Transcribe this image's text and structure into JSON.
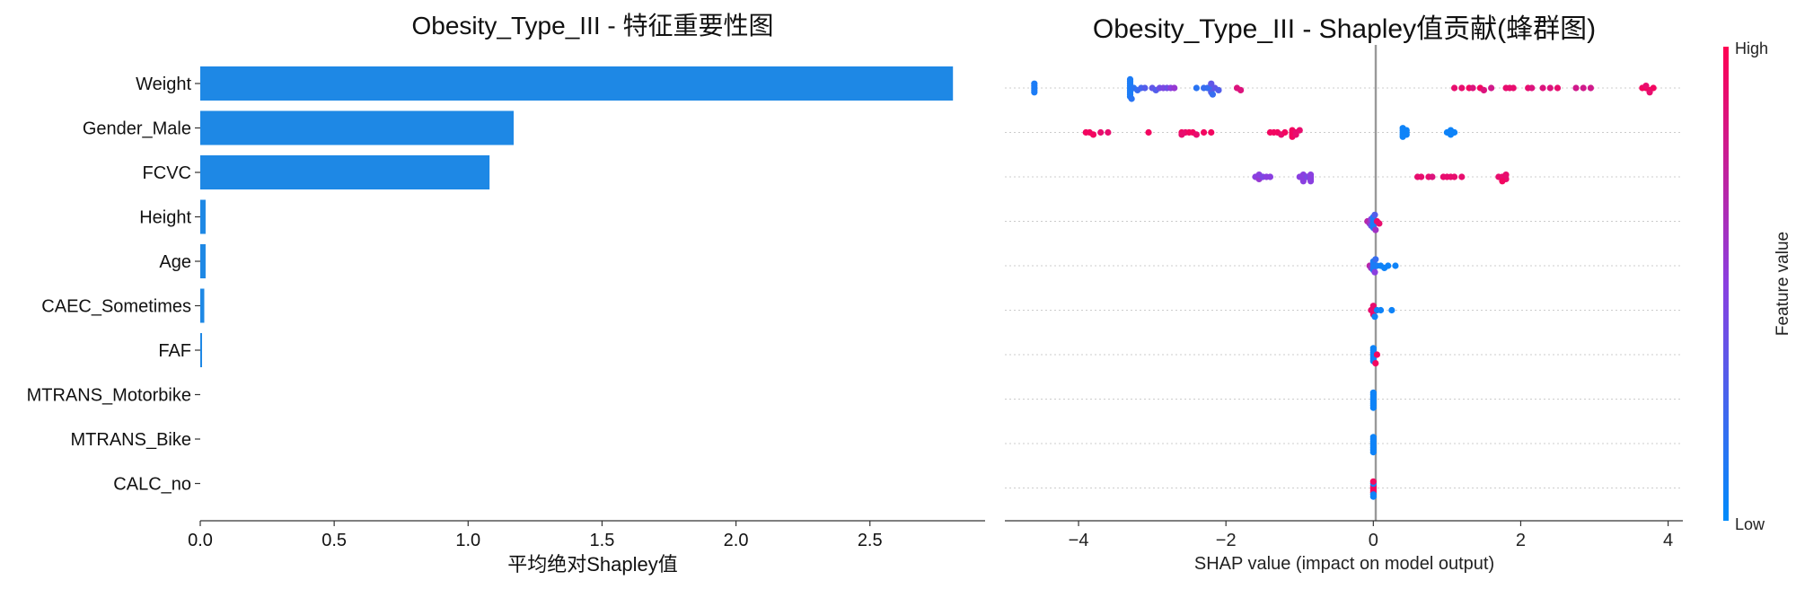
{
  "chart_data": [
    {
      "type": "bar",
      "orientation": "horizontal",
      "title": "Obesity_Type_III - 特征重要性图",
      "xlabel": "平均绝对Shapley值",
      "ylabel": "",
      "xlim": [
        0,
        2.93
      ],
      "xticks": [
        0.0,
        0.5,
        1.0,
        1.5,
        2.0,
        2.5
      ],
      "xtick_labels": [
        "0.0",
        "0.5",
        "1.0",
        "1.5",
        "2.0",
        "2.5"
      ],
      "categories": [
        "Weight",
        "Gender_Male",
        "FCVC",
        "Height",
        "Age",
        "CAEC_Sometimes",
        "FAF",
        "MTRANS_Motorbike",
        "MTRANS_Bike",
        "CALC_no"
      ],
      "values": [
        2.81,
        1.17,
        1.08,
        0.02,
        0.02,
        0.015,
        0.005,
        0.0,
        0.0,
        0.0
      ],
      "color": "#1e88e5"
    },
    {
      "type": "scatter",
      "subtype": "beeswarm",
      "title": "Obesity_Type_III - Shapley值贡献(蜂群图)",
      "xlabel": "SHAP value (impact on model output)",
      "xlim": [
        -5.0,
        4.2
      ],
      "xticks": [
        -4,
        -2,
        0,
        2,
        4
      ],
      "xtick_labels": [
        "−4",
        "−2",
        "0",
        "2",
        "4"
      ],
      "features": [
        "Weight",
        "Gender_Male",
        "FCVC",
        "Height",
        "Age",
        "CAEC_Sometimes",
        "FAF",
        "MTRANS_Motorbike",
        "MTRANS_Bike",
        "CALC_no"
      ],
      "colorbar": {
        "label": "Feature value",
        "high_label": "High",
        "low_label": "Low",
        "low_color": "#008bfb",
        "high_color": "#ff0052"
      },
      "points": [
        [
          [
            -4.6,
            0.1
          ],
          [
            -4.6,
            0.1
          ],
          [
            -4.6,
            0.1
          ],
          [
            -4.6,
            0.1
          ],
          [
            -4.6,
            0.1
          ],
          [
            -3.3,
            0.1
          ],
          [
            -3.3,
            0.1
          ],
          [
            -3.3,
            0.1
          ],
          [
            -3.3,
            0.1
          ],
          [
            -3.3,
            0.1
          ],
          [
            -3.3,
            0.1
          ],
          [
            -3.3,
            0.1
          ],
          [
            -3.3,
            0.1
          ],
          [
            -3.3,
            0.1
          ],
          [
            -3.28,
            0.15
          ],
          [
            -3.25,
            0.15
          ],
          [
            -3.2,
            0.2
          ],
          [
            -3.15,
            0.25
          ],
          [
            -3.1,
            0.3
          ],
          [
            -3.0,
            0.35
          ],
          [
            -2.95,
            0.3
          ],
          [
            -2.9,
            0.4
          ],
          [
            -2.85,
            0.45
          ],
          [
            -2.8,
            0.4
          ],
          [
            -2.75,
            0.5
          ],
          [
            -2.7,
            0.55
          ],
          [
            -2.4,
            0.15
          ],
          [
            -2.3,
            0.2
          ],
          [
            -2.25,
            0.2
          ],
          [
            -2.2,
            0.25
          ],
          [
            -2.2,
            0.15
          ],
          [
            -2.2,
            0.2
          ],
          [
            -2.2,
            0.3
          ],
          [
            -2.2,
            0.35
          ],
          [
            -2.18,
            0.2
          ],
          [
            -2.15,
            0.35
          ],
          [
            -2.1,
            0.3
          ],
          [
            -1.85,
            0.85
          ],
          [
            -1.8,
            0.85
          ],
          [
            1.1,
            0.9
          ],
          [
            1.2,
            0.9
          ],
          [
            1.3,
            0.95
          ],
          [
            1.35,
            0.85
          ],
          [
            1.45,
            0.95
          ],
          [
            1.5,
            0.85
          ],
          [
            1.6,
            0.8
          ],
          [
            1.8,
            0.9
          ],
          [
            1.85,
            0.9
          ],
          [
            1.9,
            0.9
          ],
          [
            2.1,
            0.9
          ],
          [
            2.15,
            0.85
          ],
          [
            2.3,
            0.85
          ],
          [
            2.4,
            0.85
          ],
          [
            2.5,
            0.9
          ],
          [
            2.75,
            0.8
          ],
          [
            2.85,
            0.8
          ],
          [
            2.95,
            0.8
          ],
          [
            3.65,
            0.95
          ],
          [
            3.7,
            0.95
          ],
          [
            3.75,
            0.95
          ],
          [
            3.8,
            0.95
          ],
          [
            3.7,
            0.9
          ],
          [
            3.75,
            0.9
          ]
        ],
        [
          [
            -3.9,
            0.95
          ],
          [
            -3.85,
            0.95
          ],
          [
            -3.8,
            0.95
          ],
          [
            -3.7,
            0.9
          ],
          [
            -3.6,
            0.9
          ],
          [
            -3.05,
            0.95
          ],
          [
            -2.6,
            0.95
          ],
          [
            -2.55,
            0.9
          ],
          [
            -2.5,
            0.95
          ],
          [
            -2.45,
            0.95
          ],
          [
            -2.6,
            0.9
          ],
          [
            -2.4,
            0.9
          ],
          [
            -2.3,
            0.95
          ],
          [
            -2.2,
            0.95
          ],
          [
            -1.4,
            0.95
          ],
          [
            -1.35,
            0.95
          ],
          [
            -1.3,
            0.95
          ],
          [
            -1.25,
            0.9
          ],
          [
            -1.2,
            0.95
          ],
          [
            -1.1,
            0.95
          ],
          [
            -1.1,
            0.95
          ],
          [
            -1.1,
            0.95
          ],
          [
            -1.1,
            0.95
          ],
          [
            -1.05,
            0.9
          ],
          [
            -1.05,
            0.9
          ],
          [
            -1.0,
            0.9
          ],
          [
            0.4,
            0.05
          ],
          [
            0.4,
            0.05
          ],
          [
            0.4,
            0.05
          ],
          [
            0.4,
            0.05
          ],
          [
            0.4,
            0.05
          ],
          [
            0.45,
            0.05
          ],
          [
            0.45,
            0.05
          ],
          [
            0.45,
            0.05
          ],
          [
            1.0,
            0.05
          ],
          [
            1.05,
            0.05
          ],
          [
            1.05,
            0.05
          ],
          [
            1.1,
            0.05
          ],
          [
            1.05,
            0.05
          ]
        ],
        [
          [
            -1.6,
            0.5
          ],
          [
            -1.55,
            0.55
          ],
          [
            -1.55,
            0.5
          ],
          [
            -1.5,
            0.45
          ],
          [
            -1.45,
            0.5
          ],
          [
            -1.4,
            0.5
          ],
          [
            -1.0,
            0.5
          ],
          [
            -0.95,
            0.5
          ],
          [
            -0.95,
            0.5
          ],
          [
            -0.95,
            0.5
          ],
          [
            -0.95,
            0.5
          ],
          [
            -0.9,
            0.45
          ],
          [
            -0.85,
            0.5
          ],
          [
            -0.85,
            0.5
          ],
          [
            -0.85,
            0.5
          ],
          [
            -0.85,
            0.5
          ],
          [
            0.6,
            0.9
          ],
          [
            0.65,
            0.9
          ],
          [
            0.75,
            0.9
          ],
          [
            0.8,
            0.85
          ],
          [
            0.95,
            0.9
          ],
          [
            1.0,
            0.9
          ],
          [
            1.05,
            0.9
          ],
          [
            1.1,
            0.9
          ],
          [
            1.2,
            0.9
          ],
          [
            1.7,
            0.9
          ],
          [
            1.75,
            0.9
          ],
          [
            1.8,
            0.9
          ],
          [
            1.8,
            0.9
          ],
          [
            1.75,
            0.95
          ]
        ],
        [
          [
            -0.08,
            0.7
          ],
          [
            -0.05,
            0.6
          ],
          [
            -0.03,
            0.5
          ],
          [
            -0.03,
            0.4
          ],
          [
            0.0,
            0.2
          ],
          [
            0.0,
            0.1
          ],
          [
            0.0,
            0.1
          ],
          [
            0.0,
            0.1
          ],
          [
            0.0,
            0.1
          ],
          [
            0.0,
            0.1
          ],
          [
            0.02,
            0.3
          ],
          [
            0.03,
            0.6
          ],
          [
            0.05,
            0.9
          ],
          [
            0.08,
            0.9
          ]
        ],
        [
          [
            -0.05,
            0.7
          ],
          [
            -0.03,
            0.6
          ],
          [
            0.0,
            0.2
          ],
          [
            0.0,
            0.1
          ],
          [
            0.0,
            0.1
          ],
          [
            0.0,
            0.1
          ],
          [
            0.0,
            0.1
          ],
          [
            0.02,
            0.5
          ],
          [
            0.03,
            0.2
          ],
          [
            0.05,
            0.1
          ],
          [
            0.1,
            0.05
          ],
          [
            0.15,
            0.05
          ],
          [
            0.2,
            0.05
          ],
          [
            0.3,
            0.05
          ]
        ],
        [
          [
            -0.03,
            0.9
          ],
          [
            -0.02,
            0.9
          ],
          [
            0.0,
            0.9
          ],
          [
            0.0,
            0.9
          ],
          [
            0.0,
            0.9
          ],
          [
            0.0,
            0.9
          ],
          [
            0.02,
            0.05
          ],
          [
            0.05,
            0.05
          ],
          [
            0.1,
            0.05
          ],
          [
            0.25,
            0.05
          ]
        ],
        [
          [
            0.0,
            0.05
          ],
          [
            0.0,
            0.05
          ],
          [
            0.0,
            0.05
          ],
          [
            0.0,
            0.05
          ],
          [
            0.0,
            0.05
          ],
          [
            0.0,
            0.05
          ],
          [
            0.0,
            0.05
          ],
          [
            0.03,
            0.95
          ],
          [
            0.05,
            0.95
          ]
        ],
        [
          [
            0.0,
            0.05
          ],
          [
            0.0,
            0.05
          ],
          [
            0.0,
            0.05
          ],
          [
            0.0,
            0.05
          ],
          [
            0.0,
            0.05
          ],
          [
            0.0,
            0.05
          ],
          [
            0.0,
            0.05
          ],
          [
            0.0,
            0.05
          ]
        ],
        [
          [
            0.0,
            0.05
          ],
          [
            0.0,
            0.05
          ],
          [
            0.0,
            0.05
          ],
          [
            0.0,
            0.05
          ],
          [
            0.0,
            0.05
          ],
          [
            0.0,
            0.05
          ],
          [
            0.0,
            0.05
          ],
          [
            0.0,
            0.05
          ]
        ],
        [
          [
            0.0,
            0.95
          ],
          [
            0.0,
            0.95
          ],
          [
            0.0,
            0.95
          ],
          [
            0.0,
            0.95
          ],
          [
            0.0,
            0.05
          ],
          [
            0.0,
            0.05
          ],
          [
            0.0,
            0.95
          ],
          [
            0.0,
            0.05
          ]
        ]
      ]
    }
  ]
}
